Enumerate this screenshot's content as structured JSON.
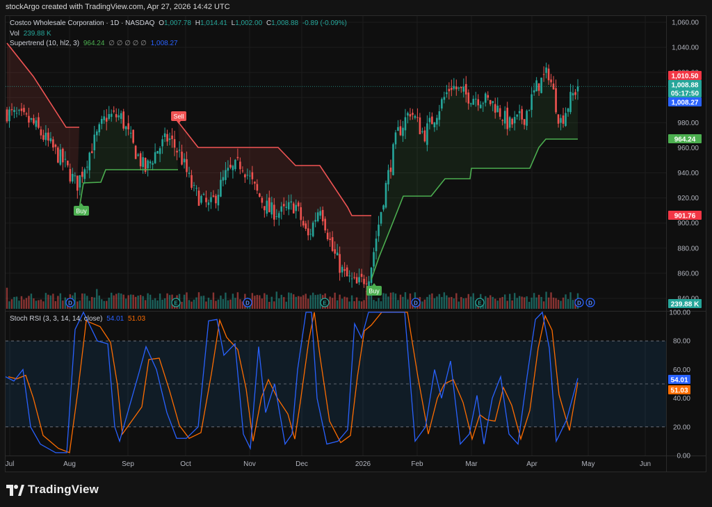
{
  "header": {
    "caption": "stockArgo created with TradingView.com, Apr 27, 2026 14:42 UTC"
  },
  "legend": {
    "symbol": "Costco Wholesale Corporation · 1D · NASDAQ",
    "o_label": "O",
    "o": "1,007.78",
    "h_label": "H",
    "h": "1,014.41",
    "l_label": "L",
    "l": "1,002.00",
    "c_label": "C",
    "c": "1,008.88",
    "change": "-0.89 (-0.09%)",
    "vol_label": "Vol",
    "vol": "239.88 K",
    "st_label": "Supertrend (10, hl2, 3)",
    "st_val": "964.24",
    "st_empty": "∅ ∅ ∅ ∅ ∅",
    "st_val2": "1,008.27",
    "rsi_label": "Stoch RSI (3, 3, 14, 14, close)",
    "rsi_k": "54.01",
    "rsi_d": "51.03"
  },
  "price_axis": [
    "1,060.00",
    "1,040.00",
    "1,020.00",
    "1,000.00",
    "980.00",
    "960.00",
    "940.00",
    "920.00",
    "900.00",
    "880.00",
    "860.00",
    "840.00"
  ],
  "price_badges": {
    "high": "1,010.50",
    "last": "1,008.88",
    "countdown": "05:17:50",
    "st_up": "1,008.27",
    "st_level": "964.24",
    "st_down": "901.76",
    "volume": "239.88 K"
  },
  "rsi_axis": [
    "100.00",
    "80.00",
    "60.00",
    "40.00",
    "20.00",
    "0.00"
  ],
  "rsi_badges": {
    "k": "54.01",
    "d": "51.03"
  },
  "time_axis": [
    "Jul",
    "Aug",
    "Sep",
    "Oct",
    "Nov",
    "Dec",
    "2026",
    "Feb",
    "Mar",
    "Apr",
    "May",
    "Jun"
  ],
  "signals": {
    "buy1": "Buy",
    "sell": "Sell",
    "buy2": "Buy"
  },
  "markers": {
    "dividend": "D",
    "earnings": "E"
  },
  "footer": {
    "brand": "TradingView"
  },
  "colors": {
    "up": "#26a69a",
    "down": "#ef5350",
    "st_up": "#4caf50",
    "st_down": "#f05454",
    "k": "#2962ff",
    "d": "#ff6d00"
  },
  "chart_data": {
    "type": "candlestick",
    "symbol": "COST",
    "interval": "1D",
    "ylim": [
      830,
      1065
    ],
    "x_range": [
      "Jul 2025",
      "Jun 2026"
    ],
    "close_path": [
      [
        "Jul",
        988
      ],
      [
        "Jul",
        980
      ],
      [
        "Jul",
        965
      ],
      [
        "Jul",
        950
      ],
      [
        "Aug",
        930
      ],
      [
        "Aug",
        960
      ],
      [
        "Aug",
        985
      ],
      [
        "Aug",
        985
      ],
      [
        "Sep",
        960
      ],
      [
        "Sep",
        942
      ],
      [
        "Sep",
        958
      ],
      [
        "Sep",
        968
      ],
      [
        "Sep",
        955
      ],
      [
        "Oct",
        925
      ],
      [
        "Oct",
        912
      ],
      [
        "Oct",
        938
      ],
      [
        "Oct",
        948
      ],
      [
        "Nov",
        925
      ],
      [
        "Nov",
        910
      ],
      [
        "Nov",
        908
      ],
      [
        "Nov",
        915
      ],
      [
        "Dec",
        888
      ],
      [
        "Dec",
        915
      ],
      [
        "Dec",
        878
      ],
      [
        "Dec",
        858
      ],
      [
        "Dec",
        850
      ],
      [
        "2026",
        860
      ],
      [
        "2026",
        920
      ],
      [
        "2026",
        970
      ],
      [
        "2026",
        990
      ],
      [
        "Feb",
        970
      ],
      [
        "Feb",
        990
      ],
      [
        "Feb",
        1010
      ],
      [
        "Feb",
        1002
      ],
      [
        "Mar",
        1000
      ],
      [
        "Mar",
        995
      ],
      [
        "Mar",
        978
      ],
      [
        "Mar",
        985
      ],
      [
        "Apr",
        1010
      ],
      [
        "Apr",
        1020
      ],
      [
        "Apr",
        980
      ],
      [
        "Apr",
        1000
      ],
      [
        "Apr",
        1008.88
      ]
    ],
    "supertrend": {
      "signals": [
        {
          "type": "Buy",
          "near": "Aug"
        },
        {
          "type": "Sell",
          "near": "Oct"
        },
        {
          "type": "Buy",
          "near": "2026"
        }
      ],
      "last": 964.24
    },
    "stoch_rsi": {
      "k_last": 54.01,
      "d_last": 51.03,
      "bands": [
        20,
        80
      ],
      "ylim": [
        0,
        100
      ]
    }
  }
}
